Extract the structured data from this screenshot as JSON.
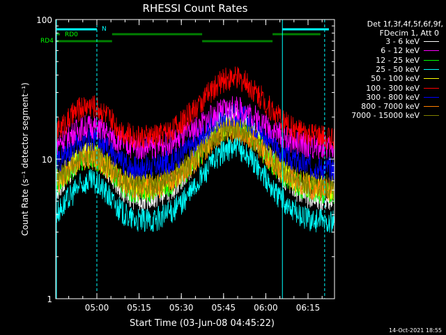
{
  "chart_data": {
    "type": "line",
    "title": "RHESSI Count Rates",
    "xlabel": "Start Time (03-Jun-08 04:45:22)",
    "ylabel": "Count Rate (s⁻¹ detector segment⁻¹)",
    "yscale": "log",
    "ylim": [
      1,
      100
    ],
    "xlim_minutes_after_start": [
      0,
      99
    ],
    "x_ticks": [
      "05:00",
      "05:15",
      "05:30",
      "05:45",
      "06:00",
      "06:15"
    ],
    "y_ticks": [
      "1",
      "10",
      "100"
    ],
    "legend_header": [
      "Det 1f,3f,4f,5f,6f,9f,",
      "FDecim 1, Att 0"
    ],
    "flag_labels": [
      "RD0",
      "RD4",
      "N"
    ],
    "series": [
      {
        "name": "3 - 6 keV",
        "color": "#ffffff",
        "min_value": 5.0,
        "peak_value": 20
      },
      {
        "name": "6 - 12 keV",
        "color": "#ff00ff",
        "min_value": 12.0,
        "peak_value": 23
      },
      {
        "name": "12 - 25 keV",
        "color": "#00ff00",
        "min_value": 5.7,
        "peak_value": 17
      },
      {
        "name": "25 - 50 keV",
        "color": "#00ffff",
        "min_value": 3.5,
        "peak_value": 12
      },
      {
        "name": "50 - 100 keV",
        "color": "#ffff00",
        "min_value": 6.2,
        "peak_value": 17
      },
      {
        "name": "100 - 300 keV",
        "color": "#ff0000",
        "min_value": 14.0,
        "peak_value": 38
      },
      {
        "name": "300 - 800 keV",
        "color": "#0000ff",
        "min_value": 8.5,
        "peak_value": 21
      },
      {
        "name": "800 - 7000 keV",
        "color": "#ff8000",
        "min_value": 6.0,
        "peak_value": 16
      },
      {
        "name": "7000 - 15000 keV",
        "color": "#808000",
        "min_value": 6.3,
        "peak_value": 17
      }
    ]
  },
  "footer_date": "14-Oct-2021 18:55"
}
